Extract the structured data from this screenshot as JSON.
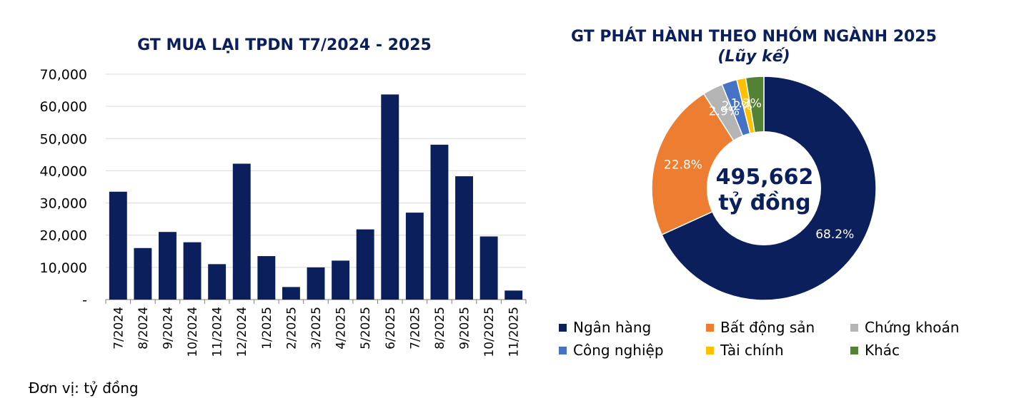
{
  "unit_note": "Đơn vị: tỷ đồng",
  "chart_data": [
    {
      "type": "bar",
      "title": "GT MUA LẠI TPDN T7/2024 - 2025",
      "categories": [
        "7/2024",
        "8/2024",
        "9/2024",
        "10/2024",
        "11/2024",
        "12/2024",
        "1/2025",
        "2/2025",
        "3/2025",
        "4/2025",
        "5/2025",
        "6/2025",
        "7/2025",
        "8/2025",
        "9/2025",
        "10/2025",
        "11/2025"
      ],
      "values": [
        33500,
        16000,
        21000,
        17800,
        11000,
        42200,
        13500,
        3900,
        10000,
        12100,
        21800,
        63700,
        27000,
        48100,
        38300,
        19600,
        2800
      ],
      "ylim": [
        0,
        70000
      ],
      "yticks": [
        "-",
        "10,000",
        "20,000",
        "30,000",
        "40,000",
        "50,000",
        "60,000",
        "70,000"
      ],
      "grid": true,
      "bar_color": "#0a1f5c"
    },
    {
      "type": "pie",
      "title": "GT PHÁT HÀNH THEO NHÓM NGÀNH 2025",
      "subtitle": "(Lũy kế)",
      "center_value": "495,662",
      "center_unit": "tỷ đồng",
      "slices": [
        {
          "name": "Ngân hàng",
          "value": 68.2,
          "label": "68.2%",
          "color": "#0a1f5c"
        },
        {
          "name": "Bất động sản",
          "value": 22.8,
          "label": "22.8%",
          "color": "#ed7d31"
        },
        {
          "name": "Chứng khoán",
          "value": 2.9,
          "label": "2.9%",
          "color": "#b4b4b4"
        },
        {
          "name": "Công nghiệp",
          "value": 2.2,
          "label": "2.2%",
          "color": "#4472c4"
        },
        {
          "name": "Tài chính",
          "value": 1.3,
          "label": "1.3%",
          "color": "#ffc000"
        },
        {
          "name": "Khác",
          "value": 2.6,
          "label": "",
          "color": "#548235"
        }
      ],
      "legend_position": "bottom"
    }
  ]
}
